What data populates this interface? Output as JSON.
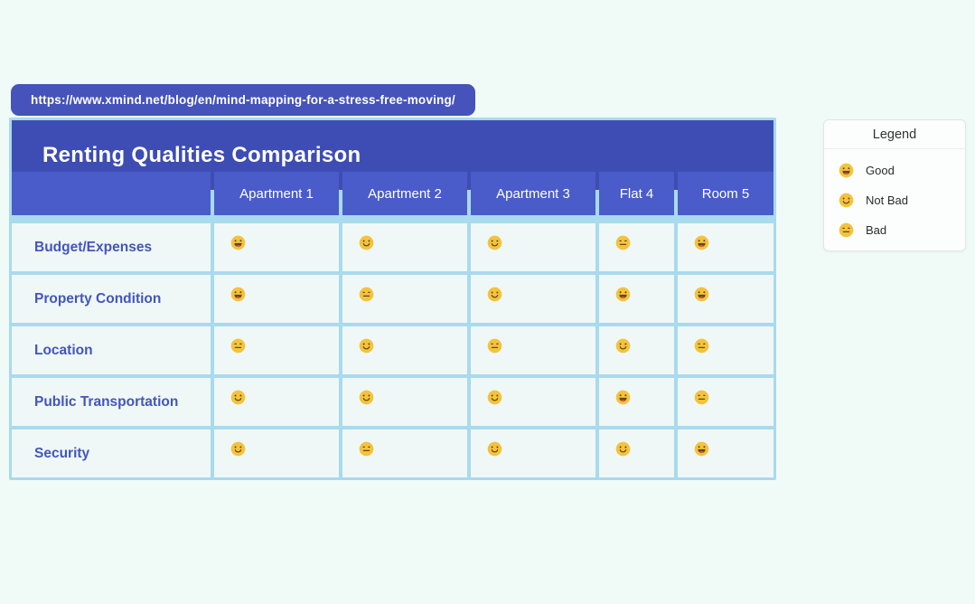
{
  "url_badge": {
    "text": "https://www.xmind.net/blog/en/mind-mapping-for-a-stress-free-moving/"
  },
  "table": {
    "title": "Renting Qualities Comparison",
    "columns": [
      "Apartment 1",
      "Apartment 2",
      "Apartment 3",
      "Flat 4",
      "Room 5"
    ],
    "rows": [
      {
        "label": "Budget/Expenses",
        "ratings": [
          "good",
          "notbad",
          "notbad",
          "bad",
          "good"
        ]
      },
      {
        "label": "Property Condition",
        "ratings": [
          "good",
          "bad",
          "notbad",
          "good",
          "good"
        ]
      },
      {
        "label": "Location",
        "ratings": [
          "bad",
          "notbad",
          "bad",
          "notbad",
          "bad"
        ]
      },
      {
        "label": "Public Transportation",
        "ratings": [
          "notbad",
          "notbad",
          "notbad",
          "good",
          "bad"
        ]
      },
      {
        "label": "Security",
        "ratings": [
          "notbad",
          "bad",
          "notbad",
          "notbad",
          "good"
        ]
      }
    ]
  },
  "legend": {
    "title": "Legend",
    "items": [
      {
        "rating": "good",
        "label": "Good"
      },
      {
        "rating": "notbad",
        "label": "Not Bad"
      },
      {
        "rating": "bad",
        "label": "Bad"
      }
    ]
  },
  "emoji_icons": {
    "good": "grinning-face-with-tongue-icon",
    "notbad": "slightly-smiling-face-icon",
    "bad": "neutral-face-icon"
  },
  "colors": {
    "page_bg": "#f0faf7",
    "title_bar": "#3e4db4",
    "header_cell": "#4a5cc9",
    "cell_bg": "#eff8f6",
    "grid_line": "#a9daee",
    "label_text": "#4355bd",
    "url_badge_bg": "#4553ba",
    "emoji_face": "#f5c33b",
    "emoji_feature": "#5c4a26",
    "emoji_tongue": "#e2574b"
  },
  "chart_data": {
    "type": "table",
    "title": "Renting Qualities Comparison",
    "columns": [
      "",
      "Apartment 1",
      "Apartment 2",
      "Apartment 3",
      "Flat 4",
      "Room 5"
    ],
    "rows": [
      {
        "label": "Budget/Expenses",
        "values": [
          "Good",
          "Not Bad",
          "Not Bad",
          "Bad",
          "Good"
        ]
      },
      {
        "label": "Property Condition",
        "values": [
          "Good",
          "Bad",
          "Not Bad",
          "Good",
          "Good"
        ]
      },
      {
        "label": "Location",
        "values": [
          "Bad",
          "Not Bad",
          "Bad",
          "Not Bad",
          "Bad"
        ]
      },
      {
        "label": "Public Transportation",
        "values": [
          "Not Bad",
          "Not Bad",
          "Not Bad",
          "Good",
          "Bad"
        ]
      },
      {
        "label": "Security",
        "values": [
          "Not Bad",
          "Bad",
          "Not Bad",
          "Not Bad",
          "Good"
        ]
      }
    ],
    "legend": [
      {
        "symbol": "grinning-face-with-tongue",
        "label": "Good"
      },
      {
        "symbol": "slightly-smiling-face",
        "label": "Not Bad"
      },
      {
        "symbol": "neutral-face",
        "label": "Bad"
      }
    ],
    "legend_position": "top-right"
  }
}
